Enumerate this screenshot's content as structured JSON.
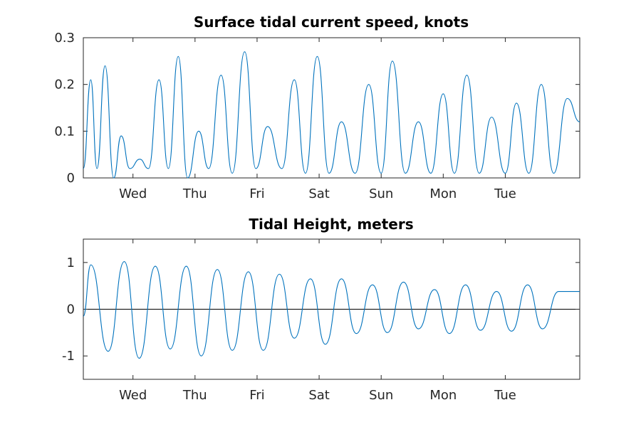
{
  "chart_data": [
    {
      "type": "line",
      "title": "Surface tidal current speed, knots",
      "xlabel": "",
      "ylabel": "",
      "x_tick_labels": [
        "Wed",
        "Thu",
        "Fri",
        "Sat",
        "Sun",
        "Mon",
        "Tue"
      ],
      "x_tick_positions_days": [
        1,
        2,
        3,
        4,
        5,
        6,
        7
      ],
      "xlim_days": [
        0.2,
        8.2
      ],
      "ylim": [
        0,
        0.3
      ],
      "y_ticks": [
        0,
        0.1,
        0.2,
        0.3
      ],
      "y_tick_labels": [
        "0",
        "0.1",
        "0.2",
        "0.3"
      ],
      "grid": false,
      "color": "#0072BD",
      "series": [
        {
          "x": [
            0.2,
            0.32,
            0.42,
            0.55,
            0.69,
            0.81,
            0.95,
            1.11,
            1.25,
            1.42,
            1.57,
            1.73,
            1.88,
            2.06,
            2.22,
            2.42,
            2.6,
            2.8,
            2.98,
            3.17,
            3.4,
            3.6,
            3.78,
            3.97,
            4.16,
            4.36,
            4.58,
            4.8,
            5.0,
            5.18,
            5.39,
            5.6,
            5.8,
            6.0,
            6.18,
            6.38,
            6.58,
            6.78,
            7.0,
            7.18,
            7.38,
            7.58,
            7.78,
            8.0,
            8.2
          ],
          "y": [
            0.02,
            0.21,
            0.02,
            0.24,
            0.0,
            0.09,
            0.02,
            0.04,
            0.02,
            0.21,
            0.02,
            0.26,
            0.0,
            0.1,
            0.02,
            0.22,
            0.01,
            0.27,
            0.02,
            0.11,
            0.02,
            0.21,
            0.01,
            0.26,
            0.01,
            0.12,
            0.01,
            0.2,
            0.01,
            0.25,
            0.01,
            0.12,
            0.01,
            0.18,
            0.01,
            0.22,
            0.01,
            0.13,
            0.01,
            0.16,
            0.01,
            0.2,
            0.01,
            0.17,
            0.12
          ]
        }
      ]
    },
    {
      "type": "line",
      "title": "Tidal Height, meters",
      "xlabel": "",
      "ylabel": "",
      "x_tick_labels": [
        "Wed",
        "Thu",
        "Fri",
        "Sat",
        "Sun",
        "Mon",
        "Tue"
      ],
      "x_tick_positions_days": [
        1,
        2,
        3,
        4,
        5,
        6,
        7
      ],
      "xlim_days": [
        0.2,
        8.2
      ],
      "ylim": [
        -1.5,
        1.5
      ],
      "y_ticks": [
        -1,
        0,
        1
      ],
      "y_tick_labels": [
        "-1",
        "0",
        "1"
      ],
      "reference_line_y": 0,
      "grid": false,
      "color": "#0072BD",
      "series": [
        {
          "x": [
            0.2,
            0.32,
            0.6,
            0.86,
            1.1,
            1.36,
            1.6,
            1.86,
            2.1,
            2.36,
            2.6,
            2.86,
            3.1,
            3.36,
            3.6,
            3.86,
            4.1,
            4.36,
            4.6,
            4.86,
            5.1,
            5.36,
            5.6,
            5.86,
            6.1,
            6.36,
            6.6,
            6.86,
            7.1,
            7.36,
            7.6,
            7.86,
            8.1,
            8.2
          ],
          "y": [
            -0.15,
            0.95,
            -0.9,
            1.02,
            -1.05,
            0.92,
            -0.85,
            0.92,
            -1.0,
            0.85,
            -0.88,
            0.8,
            -0.88,
            0.75,
            -0.62,
            0.65,
            -0.75,
            0.65,
            -0.52,
            0.52,
            -0.5,
            0.58,
            -0.42,
            0.42,
            -0.52,
            0.52,
            -0.45,
            0.38,
            -0.47,
            0.52,
            -0.42,
            0.38,
            0.38,
            0.38
          ]
        }
      ]
    }
  ]
}
